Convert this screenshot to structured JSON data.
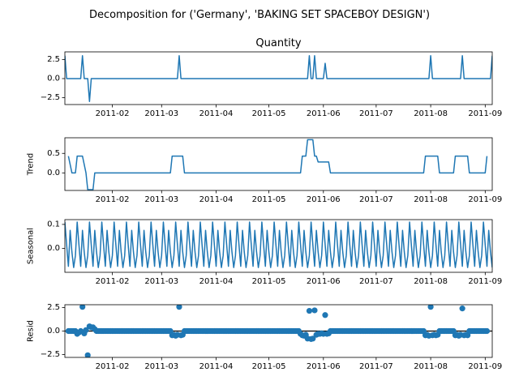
{
  "suptitle": "Decomposition for ('Germany', 'BAKING SET SPACEBOY DESIGN')",
  "chart_data": [
    {
      "type": "line",
      "title": "Quantity",
      "ylabel": "",
      "xlim": [
        "2011-01-05",
        "2011-09-05"
      ],
      "ylim": [
        -3.4,
        3.5
      ],
      "yticks": [
        -2.5,
        0.0,
        2.5
      ],
      "ytick_labels": [
        "−2.5",
        "0.0",
        "2.5"
      ],
      "xtick_labels": [
        "2011-02",
        "2011-03",
        "2011-04",
        "2011-05",
        "2011-06",
        "2011-07",
        "2011-08",
        "2011-09"
      ],
      "xticks": [
        "2011-02-01",
        "2011-03-01",
        "2011-04-01",
        "2011-05-01",
        "2011-06-01",
        "2011-07-01",
        "2011-08-01",
        "2011-09-01"
      ],
      "points": [
        [
          "2011-01-05",
          3.0
        ],
        [
          "2011-01-06",
          0.0
        ],
        [
          "2011-01-14",
          0.0
        ],
        [
          "2011-01-15",
          3.0
        ],
        [
          "2011-01-16",
          0.0
        ],
        [
          "2011-01-18",
          0.0
        ],
        [
          "2011-01-19",
          -3.0
        ],
        [
          "2011-01-20",
          0.0
        ],
        [
          "2011-03-10",
          0.0
        ],
        [
          "2011-03-11",
          3.0
        ],
        [
          "2011-03-12",
          0.0
        ],
        [
          "2011-05-23",
          0.0
        ],
        [
          "2011-05-24",
          3.0
        ],
        [
          "2011-05-25",
          0.0
        ],
        [
          "2011-05-26",
          0.0
        ],
        [
          "2011-05-27",
          3.0
        ],
        [
          "2011-05-28",
          0.0
        ],
        [
          "2011-06-01",
          0.0
        ],
        [
          "2011-06-02",
          2.0
        ],
        [
          "2011-06-03",
          0.0
        ],
        [
          "2011-07-31",
          0.0
        ],
        [
          "2011-08-01",
          3.0
        ],
        [
          "2011-08-02",
          0.0
        ],
        [
          "2011-08-18",
          0.0
        ],
        [
          "2011-08-19",
          3.0
        ],
        [
          "2011-08-20",
          0.0
        ],
        [
          "2011-09-04",
          0.0
        ],
        [
          "2011-09-05",
          3.0
        ]
      ]
    },
    {
      "type": "line",
      "title": "",
      "ylabel": "Trend",
      "xlim": [
        "2011-01-05",
        "2011-09-05"
      ],
      "ylim": [
        -0.45,
        0.9
      ],
      "yticks": [
        0.0,
        0.5
      ],
      "ytick_labels": [
        "0.0",
        "0.5"
      ],
      "xtick_labels": [
        "2011-02",
        "2011-03",
        "2011-04",
        "2011-05",
        "2011-06",
        "2011-07",
        "2011-08",
        "2011-09"
      ],
      "xticks": [
        "2011-02-01",
        "2011-03-01",
        "2011-04-01",
        "2011-05-01",
        "2011-06-01",
        "2011-07-01",
        "2011-08-01",
        "2011-09-01"
      ],
      "points": [
        [
          "2011-01-07",
          0.43
        ],
        [
          "2011-01-09",
          0.0
        ],
        [
          "2011-01-11",
          0.0
        ],
        [
          "2011-01-12",
          0.43
        ],
        [
          "2011-01-15",
          0.43
        ],
        [
          "2011-01-17",
          0.0
        ],
        [
          "2011-01-18",
          -0.43
        ],
        [
          "2011-01-21",
          -0.43
        ],
        [
          "2011-01-22",
          0.0
        ],
        [
          "2011-03-06",
          0.0
        ],
        [
          "2011-03-07",
          0.43
        ],
        [
          "2011-03-13",
          0.43
        ],
        [
          "2011-03-14",
          0.0
        ],
        [
          "2011-05-19",
          0.0
        ],
        [
          "2011-05-20",
          0.43
        ],
        [
          "2011-05-22",
          0.43
        ],
        [
          "2011-05-23",
          0.85
        ],
        [
          "2011-05-26",
          0.85
        ],
        [
          "2011-05-27",
          0.43
        ],
        [
          "2011-05-28",
          0.43
        ],
        [
          "2011-05-29",
          0.28
        ],
        [
          "2011-06-04",
          0.28
        ],
        [
          "2011-06-05",
          0.0
        ],
        [
          "2011-07-28",
          0.0
        ],
        [
          "2011-07-29",
          0.43
        ],
        [
          "2011-08-05",
          0.43
        ],
        [
          "2011-08-06",
          0.0
        ],
        [
          "2011-08-14",
          0.0
        ],
        [
          "2011-08-15",
          0.43
        ],
        [
          "2011-08-22",
          0.43
        ],
        [
          "2011-08-23",
          0.0
        ],
        [
          "2011-09-01",
          0.0
        ],
        [
          "2011-09-02",
          0.43
        ]
      ]
    },
    {
      "type": "line",
      "title": "",
      "ylabel": "Seasonal",
      "xlim": [
        "2011-01-05",
        "2011-09-05"
      ],
      "ylim": [
        -0.1,
        0.12
      ],
      "yticks": [
        0.0,
        0.1
      ],
      "ytick_labels": [
        "0.0",
        "0.1"
      ],
      "xtick_labels": [
        "2011-02",
        "2011-03",
        "2011-04",
        "2011-05",
        "2011-06",
        "2011-07",
        "2011-08",
        "2011-09"
      ],
      "xticks": [
        "2011-02-01",
        "2011-03-01",
        "2011-04-01",
        "2011-05-01",
        "2011-06-01",
        "2011-07-01",
        "2011-08-01",
        "2011-09-01"
      ],
      "start": "2011-01-05",
      "end": "2011-09-05",
      "period_days": 7,
      "weekly_pattern": [
        0.11,
        0.015,
        -0.075,
        0.075,
        -0.015,
        -0.08,
        -0.03
      ]
    },
    {
      "type": "scatter",
      "title": "",
      "ylabel": "Resid",
      "xlim": [
        "2011-01-05",
        "2011-09-05"
      ],
      "ylim": [
        -2.8,
        2.8
      ],
      "yticks": [
        -2.5,
        0.0,
        2.5
      ],
      "ytick_labels": [
        "−2.5",
        "0.0",
        "2.5"
      ],
      "xtick_labels": [
        "2011-02",
        "2011-03",
        "2011-04",
        "2011-05",
        "2011-06",
        "2011-07",
        "2011-08",
        "2011-09"
      ],
      "xticks": [
        "2011-02-01",
        "2011-03-01",
        "2011-04-01",
        "2011-05-01",
        "2011-06-01",
        "2011-07-01",
        "2011-08-01",
        "2011-09-01"
      ],
      "baseline": 0.0,
      "start": "2011-01-07",
      "end": "2011-09-02",
      "default_value": 0.0,
      "points": [
        [
          "2011-01-12",
          -0.3
        ],
        [
          "2011-01-13",
          -0.15
        ],
        [
          "2011-01-15",
          2.57
        ],
        [
          "2011-01-16",
          -0.25
        ],
        [
          "2011-01-17",
          0.1
        ],
        [
          "2011-01-18",
          -2.57
        ],
        [
          "2011-01-19",
          0.5
        ],
        [
          "2011-01-20",
          0.4
        ],
        [
          "2011-01-21",
          0.4
        ],
        [
          "2011-01-22",
          0.2
        ],
        [
          "2011-03-07",
          -0.45
        ],
        [
          "2011-03-08",
          -0.4
        ],
        [
          "2011-03-09",
          -0.5
        ],
        [
          "2011-03-10",
          -0.4
        ],
        [
          "2011-03-11",
          2.57
        ],
        [
          "2011-03-12",
          -0.45
        ],
        [
          "2011-03-13",
          -0.4
        ],
        [
          "2011-05-19",
          -0.3
        ],
        [
          "2011-05-20",
          -0.45
        ],
        [
          "2011-05-21",
          -0.5
        ],
        [
          "2011-05-22",
          -0.4
        ],
        [
          "2011-05-23",
          -0.8
        ],
        [
          "2011-05-24",
          2.15
        ],
        [
          "2011-05-25",
          -0.85
        ],
        [
          "2011-05-26",
          -0.8
        ],
        [
          "2011-05-27",
          2.2
        ],
        [
          "2011-05-28",
          -0.4
        ],
        [
          "2011-05-29",
          -0.3
        ],
        [
          "2011-05-30",
          -0.3
        ],
        [
          "2011-05-31",
          -0.25
        ],
        [
          "2011-06-01",
          -0.3
        ],
        [
          "2011-06-02",
          1.7
        ],
        [
          "2011-06-03",
          -0.3
        ],
        [
          "2011-06-04",
          -0.25
        ],
        [
          "2011-07-29",
          -0.45
        ],
        [
          "2011-07-30",
          -0.4
        ],
        [
          "2011-07-31",
          -0.5
        ],
        [
          "2011-08-01",
          2.57
        ],
        [
          "2011-08-02",
          -0.45
        ],
        [
          "2011-08-03",
          -0.4
        ],
        [
          "2011-08-04",
          -0.45
        ],
        [
          "2011-08-05",
          -0.4
        ],
        [
          "2011-08-15",
          -0.45
        ],
        [
          "2011-08-16",
          -0.4
        ],
        [
          "2011-08-17",
          -0.5
        ],
        [
          "2011-08-18",
          -0.4
        ],
        [
          "2011-08-19",
          2.4
        ],
        [
          "2011-08-20",
          -0.45
        ],
        [
          "2011-08-21",
          -0.4
        ],
        [
          "2011-08-22",
          -0.45
        ]
      ]
    }
  ]
}
